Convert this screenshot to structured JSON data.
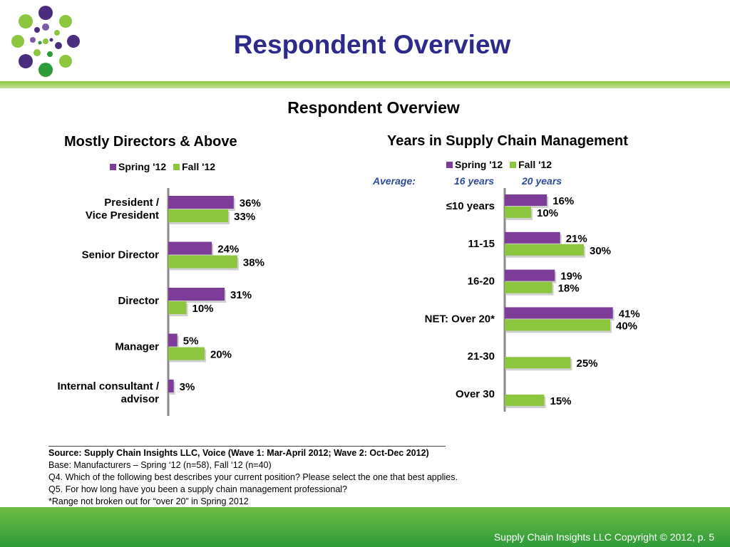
{
  "header": {
    "title": "Respondent Overview"
  },
  "subtitle": "Respondent Overview",
  "colors": {
    "spring": "#7d3c98",
    "fall": "#8cc63f",
    "title": "#2e2a8c",
    "average": "#2e4a9e"
  },
  "chart_data": [
    {
      "type": "bar",
      "orientation": "horizontal",
      "title": "Mostly Directors & Above",
      "legend": [
        "Spring '12",
        "Fall '12"
      ],
      "categories": [
        "President / Vice President",
        "Senior Director",
        "Director",
        "Manager",
        "Internal consultant / advisor"
      ],
      "category_lines": [
        [
          "President /",
          "Vice President"
        ],
        [
          "Senior Director"
        ],
        [
          "Director"
        ],
        [
          "Manager"
        ],
        [
          "Internal consultant /",
          "advisor"
        ]
      ],
      "series": [
        {
          "name": "Spring '12",
          "values": [
            36,
            24,
            31,
            5,
            3
          ],
          "labels": [
            "36%",
            "24%",
            "31%",
            "5%",
            "3%"
          ]
        },
        {
          "name": "Fall '12",
          "values": [
            33,
            38,
            10,
            20,
            null
          ],
          "labels": [
            "33%",
            "38%",
            "10%",
            "20%",
            ""
          ]
        }
      ],
      "unit": "%"
    },
    {
      "type": "bar",
      "orientation": "horizontal",
      "title": "Years in Supply Chain Management",
      "legend": [
        "Spring '12",
        "Fall '12"
      ],
      "average": {
        "label": "Average:",
        "spring": "16 years",
        "fall": "20 years"
      },
      "categories": [
        "≤10 years",
        "11-15",
        "16-20",
        "NET: Over 20*",
        "21-30",
        "Over 30"
      ],
      "category_lines": [
        [
          "≤10 years"
        ],
        [
          "11-15"
        ],
        [
          "16-20"
        ],
        [
          "NET: Over 20*"
        ],
        [
          "21-30"
        ],
        [
          "Over 30"
        ]
      ],
      "series": [
        {
          "name": "Spring '12",
          "values": [
            16,
            21,
            19,
            41,
            null,
            null
          ],
          "labels": [
            "16%",
            "21%",
            "19%",
            "41%",
            "",
            ""
          ]
        },
        {
          "name": "Fall '12",
          "values": [
            10,
            30,
            18,
            40,
            25,
            15
          ],
          "labels": [
            "10%",
            "30%",
            "18%",
            "40%",
            "25%",
            "15%"
          ]
        }
      ],
      "unit": "%"
    }
  ],
  "source": {
    "line1": "Source:  Supply Chain Insights LLC, Voice (Wave 1: Mar-April 2012; Wave 2: Oct-Dec 2012)",
    "line2": "Base:  Manufacturers – Spring ‘12 (n=58), Fall ‘12 (n=40)",
    "line3": "Q4. Which of the following best describes your current position? Please select the one that best applies.",
    "line4": "Q5. For how long have you been a supply chain management professional?",
    "line5": "*Range not broken out for “over 20” in Spring 2012"
  },
  "footer": {
    "copyright": "Supply Chain Insights LLC Copyright © 2012, p. 5"
  }
}
